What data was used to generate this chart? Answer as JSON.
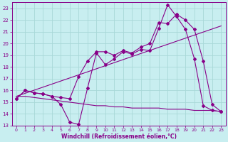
{
  "title": "",
  "xlabel": "Windchill (Refroidissement éolien,°C)",
  "ylabel": "",
  "xlim": [
    -0.5,
    23.5
  ],
  "ylim": [
    13,
    23.5
  ],
  "xticks": [
    0,
    1,
    2,
    3,
    4,
    5,
    6,
    7,
    8,
    9,
    10,
    11,
    12,
    13,
    14,
    15,
    16,
    17,
    18,
    19,
    20,
    21,
    22,
    23
  ],
  "yticks": [
    13,
    14,
    15,
    16,
    17,
    18,
    19,
    20,
    21,
    22,
    23
  ],
  "bg_color": "#c8eef0",
  "grid_color": "#a8d8d8",
  "line_color": "#880088",
  "marker_size": 2,
  "line_width": 0.8,
  "curve1_x": [
    0,
    1,
    2,
    3,
    4,
    5,
    6,
    7,
    8,
    9,
    10,
    11,
    12,
    13,
    14,
    15,
    16,
    17,
    18,
    19,
    20,
    21,
    22,
    23
  ],
  "curve1_y": [
    15.3,
    16.0,
    15.8,
    15.7,
    15.5,
    14.8,
    13.3,
    13.1,
    16.2,
    19.2,
    18.2,
    18.7,
    19.3,
    19.1,
    19.5,
    19.4,
    21.3,
    23.3,
    22.3,
    21.2,
    18.7,
    14.7,
    14.3,
    14.2
  ],
  "curve2_x": [
    0,
    1,
    2,
    3,
    4,
    5,
    6,
    7,
    8,
    9,
    10,
    11,
    12,
    13,
    14,
    15,
    16,
    17,
    18,
    19,
    20,
    21,
    22,
    23
  ],
  "curve2_y": [
    15.3,
    16.0,
    15.8,
    15.7,
    15.5,
    15.4,
    15.3,
    17.2,
    18.5,
    19.3,
    19.3,
    19.0,
    19.4,
    19.2,
    19.7,
    20.0,
    21.8,
    21.7,
    22.5,
    22.0,
    21.2,
    18.5,
    14.8,
    14.2
  ],
  "curve3_x": [
    0,
    23
  ],
  "curve3_y": [
    15.5,
    21.5
  ],
  "curve4_x": [
    0,
    1,
    2,
    3,
    4,
    5,
    6,
    7,
    8,
    9,
    10,
    11,
    12,
    13,
    14,
    15,
    16,
    17,
    18,
    19,
    20,
    21,
    22,
    23
  ],
  "curve4_y": [
    15.5,
    15.5,
    15.4,
    15.3,
    15.2,
    15.1,
    15.0,
    14.9,
    14.8,
    14.7,
    14.7,
    14.6,
    14.6,
    14.5,
    14.5,
    14.5,
    14.5,
    14.4,
    14.4,
    14.4,
    14.3,
    14.3,
    14.3,
    14.2
  ]
}
